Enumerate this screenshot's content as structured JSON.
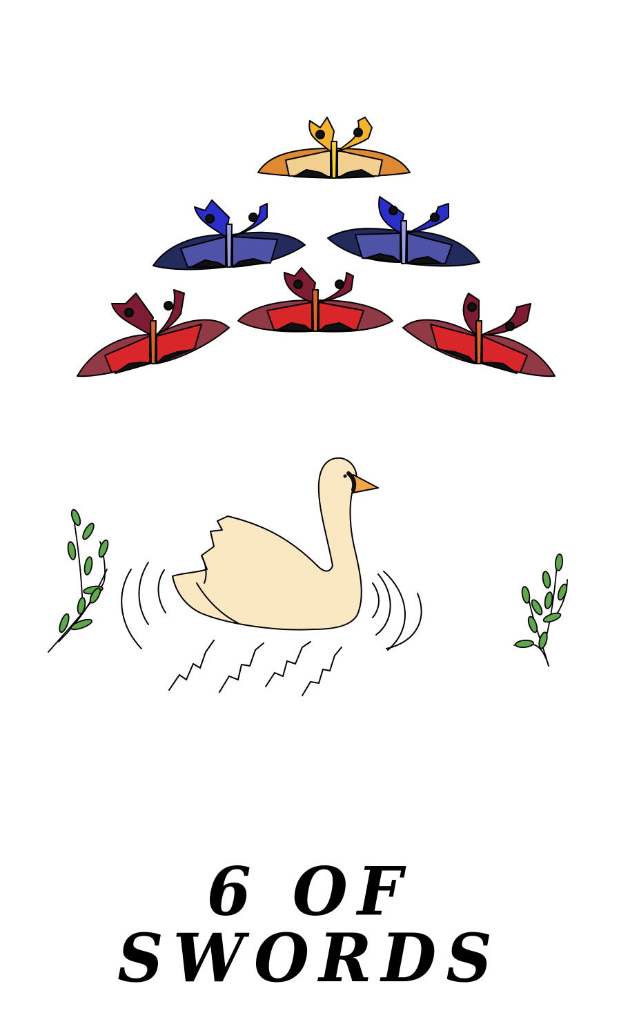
{
  "card": {
    "title": "6 OF SWORDS",
    "background": "#ffffff"
  },
  "illustration": {
    "butterflies": [
      {
        "name": "butterfly-orange",
        "palette": {
          "inner": "#f5b32a",
          "band": "#f1cf8f",
          "outer": "#dd8a33",
          "body": "#f5d12a"
        }
      },
      {
        "name": "butterfly-blue-left",
        "palette": {
          "inner": "#2b2fc9",
          "band": "#4f53a8",
          "outer": "#232a5c",
          "body": "#9aa0e0"
        }
      },
      {
        "name": "butterfly-blue-right",
        "palette": {
          "inner": "#2b2fc9",
          "band": "#4f53a8",
          "outer": "#232a5c",
          "body": "#9aa0e0"
        }
      },
      {
        "name": "butterfly-red-left",
        "palette": {
          "inner": "#7d1c33",
          "band": "#d8262a",
          "outer": "#8f3a45",
          "body": "#e0632a"
        }
      },
      {
        "name": "butterfly-red-center",
        "palette": {
          "inner": "#7d1c33",
          "band": "#d8262a",
          "outer": "#8f3a45",
          "body": "#e0632a"
        }
      },
      {
        "name": "butterfly-red-right",
        "palette": {
          "inner": "#7d1c33",
          "band": "#d8262a",
          "outer": "#8f3a45",
          "body": "#e0632a"
        }
      }
    ],
    "swan": {
      "body": "#f9e8c2",
      "beak": "#f5a544"
    },
    "leaves": {
      "color": "#5fa84c"
    }
  }
}
